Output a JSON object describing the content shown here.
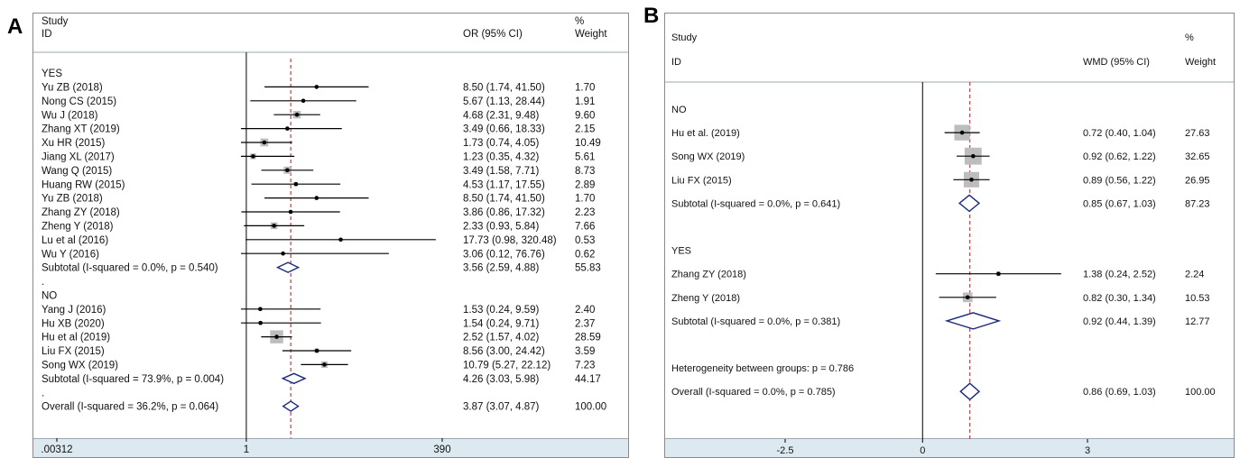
{
  "chart_data": [
    {
      "type": "forest",
      "panel_label": "A",
      "columns": {
        "study": "Study",
        "id": "ID",
        "estimate": "OR (95% CI)",
        "pct": "%",
        "weight": "Weight"
      },
      "scale": "log",
      "reference_line": 1,
      "overall_line": 3.87,
      "x_ticks": [
        {
          "value": 0.00312,
          "label": ".00312"
        },
        {
          "value": 1,
          "label": "1"
        },
        {
          "value": 390,
          "label": "390"
        }
      ],
      "rows": [
        {
          "kind": "group",
          "label": "YES"
        },
        {
          "kind": "study",
          "label": "Yu ZB (2018)",
          "est": 8.5,
          "lo": 1.74,
          "hi": 41.5,
          "ci_text": "8.50 (1.74, 41.50)",
          "weight": "1.70"
        },
        {
          "kind": "study",
          "label": "Nong CS (2015)",
          "est": 5.67,
          "lo": 1.13,
          "hi": 28.44,
          "ci_text": "5.67 (1.13, 28.44)",
          "weight": "1.91"
        },
        {
          "kind": "study",
          "label": "Wu J (2018)",
          "est": 4.68,
          "lo": 2.31,
          "hi": 9.48,
          "ci_text": "4.68 (2.31, 9.48)",
          "weight": "9.60"
        },
        {
          "kind": "study",
          "label": "Zhang XT (2019)",
          "est": 3.49,
          "lo": 0.66,
          "hi": 18.33,
          "ci_text": "3.49 (0.66, 18.33)",
          "weight": "2.15"
        },
        {
          "kind": "study",
          "label": "Xu HR (2015)",
          "est": 1.73,
          "lo": 0.74,
          "hi": 4.05,
          "ci_text": "1.73 (0.74, 4.05)",
          "weight": "10.49"
        },
        {
          "kind": "study",
          "label": "Jiang XL (2017)",
          "est": 1.23,
          "lo": 0.35,
          "hi": 4.32,
          "ci_text": "1.23 (0.35, 4.32)",
          "weight": "5.61"
        },
        {
          "kind": "study",
          "label": "Wang Q (2015)",
          "est": 3.49,
          "lo": 1.58,
          "hi": 7.71,
          "ci_text": "3.49 (1.58, 7.71)",
          "weight": "8.73"
        },
        {
          "kind": "study",
          "label": "Huang RW (2015)",
          "est": 4.53,
          "lo": 1.17,
          "hi": 17.55,
          "ci_text": "4.53 (1.17, 17.55)",
          "weight": "2.89"
        },
        {
          "kind": "study",
          "label": "Yu ZB (2018)",
          "est": 8.5,
          "lo": 1.74,
          "hi": 41.5,
          "ci_text": "8.50 (1.74, 41.50)",
          "weight": "1.70"
        },
        {
          "kind": "study",
          "label": "Zhang ZY (2018)",
          "est": 3.86,
          "lo": 0.86,
          "hi": 17.32,
          "ci_text": "3.86 (0.86, 17.32)",
          "weight": "2.23"
        },
        {
          "kind": "study",
          "label": "Zheng Y (2018)",
          "est": 2.33,
          "lo": 0.93,
          "hi": 5.84,
          "ci_text": "2.33 (0.93, 5.84)",
          "weight": "7.66"
        },
        {
          "kind": "study",
          "label": "Lu et al (2016)",
          "est": 17.73,
          "lo": 0.98,
          "hi": 320.48,
          "ci_text": "17.73 (0.98, 320.48)",
          "weight": "0.53"
        },
        {
          "kind": "study",
          "label": "Wu Y (2016)",
          "est": 3.06,
          "lo": 0.12,
          "hi": 76.76,
          "ci_text": "3.06 (0.12, 76.76)",
          "weight": "0.62"
        },
        {
          "kind": "subtotal",
          "label": "Subtotal  (I-squared = 0.0%, p = 0.540)",
          "est": 3.56,
          "lo": 2.59,
          "hi": 4.88,
          "ci_text": "3.56 (2.59, 4.88)",
          "weight": "55.83"
        },
        {
          "kind": "blank",
          "label": "."
        },
        {
          "kind": "group",
          "label": "NO"
        },
        {
          "kind": "study",
          "label": "Yang J (2016)",
          "est": 1.53,
          "lo": 0.24,
          "hi": 9.59,
          "ci_text": "1.53 (0.24, 9.59)",
          "weight": "2.40"
        },
        {
          "kind": "study",
          "label": "Hu XB (2020)",
          "est": 1.54,
          "lo": 0.24,
          "hi": 9.71,
          "ci_text": "1.54 (0.24, 9.71)",
          "weight": "2.37"
        },
        {
          "kind": "study",
          "label": "Hu et al (2019)",
          "est": 2.52,
          "lo": 1.57,
          "hi": 4.02,
          "ci_text": "2.52 (1.57, 4.02)",
          "weight": "28.59"
        },
        {
          "kind": "study",
          "label": "Liu FX (2015)",
          "est": 8.56,
          "lo": 3.0,
          "hi": 24.42,
          "ci_text": "8.56 (3.00, 24.42)",
          "weight": "3.59"
        },
        {
          "kind": "study",
          "label": "Song WX (2019)",
          "est": 10.79,
          "lo": 5.27,
          "hi": 22.12,
          "ci_text": "10.79 (5.27, 22.12)",
          "weight": "7.23"
        },
        {
          "kind": "subtotal",
          "label": "Subtotal  (I-squared = 73.9%, p = 0.004)",
          "est": 4.26,
          "lo": 3.03,
          "hi": 5.98,
          "ci_text": "4.26 (3.03, 5.98)",
          "weight": "44.17"
        },
        {
          "kind": "blank",
          "label": "."
        },
        {
          "kind": "overall",
          "label": "Overall  (I-squared = 36.2%, p = 0.064)",
          "est": 3.87,
          "lo": 3.07,
          "hi": 4.87,
          "ci_text": "3.87 (3.07, 4.87)",
          "weight": "100.00"
        }
      ]
    },
    {
      "type": "forest",
      "panel_label": "B",
      "columns": {
        "study": "Study",
        "id": "ID",
        "estimate": "WMD (95% CI)",
        "pct": "%",
        "weight": "Weight"
      },
      "scale": "linear",
      "reference_line": 0,
      "overall_line": 0.86,
      "x_ticks": [
        {
          "value": -2.5,
          "label": "-2.5"
        },
        {
          "value": 0,
          "label": "0"
        },
        {
          "value": 3,
          "label": "3"
        }
      ],
      "rows": [
        {
          "kind": "group",
          "label": "NO"
        },
        {
          "kind": "study",
          "label": "Hu et al. (2019)",
          "est": 0.72,
          "lo": 0.4,
          "hi": 1.04,
          "ci_text": "0.72 (0.40, 1.04)",
          "weight": "27.63"
        },
        {
          "kind": "study",
          "label": "Song WX (2019)",
          "est": 0.92,
          "lo": 0.62,
          "hi": 1.22,
          "ci_text": "0.92 (0.62, 1.22)",
          "weight": "32.65"
        },
        {
          "kind": "study",
          "label": "Liu FX (2015)",
          "est": 0.89,
          "lo": 0.56,
          "hi": 1.22,
          "ci_text": "0.89 (0.56, 1.22)",
          "weight": "26.95"
        },
        {
          "kind": "subtotal",
          "label": "Subtotal  (I-squared = 0.0%, p = 0.641)",
          "est": 0.85,
          "lo": 0.67,
          "hi": 1.03,
          "ci_text": "0.85 (0.67, 1.03)",
          "weight": "87.23"
        },
        {
          "kind": "blank",
          "label": ""
        },
        {
          "kind": "group",
          "label": "YES"
        },
        {
          "kind": "study",
          "label": "Zhang ZY (2018)",
          "est": 1.38,
          "lo": 0.24,
          "hi": 2.52,
          "ci_text": "1.38 (0.24, 2.52)",
          "weight": "2.24"
        },
        {
          "kind": "study",
          "label": "Zheng Y (2018)",
          "est": 0.82,
          "lo": 0.3,
          "hi": 1.34,
          "ci_text": "0.82 (0.30, 1.34)",
          "weight": "10.53"
        },
        {
          "kind": "subtotal",
          "label": "Subtotal  (I-squared = 0.0%, p = 0.381)",
          "est": 0.92,
          "lo": 0.44,
          "hi": 1.39,
          "ci_text": "0.92 (0.44, 1.39)",
          "weight": "12.77"
        },
        {
          "kind": "blank",
          "label": ""
        },
        {
          "kind": "note",
          "label": "Heterogeneity between groups: p = 0.786"
        },
        {
          "kind": "overall",
          "label": "Overall  (I-squared = 0.0%, p = 0.785)",
          "est": 0.86,
          "lo": 0.69,
          "hi": 1.03,
          "ci_text": "0.86 (0.69, 1.03)",
          "weight": "100.00"
        }
      ]
    }
  ]
}
